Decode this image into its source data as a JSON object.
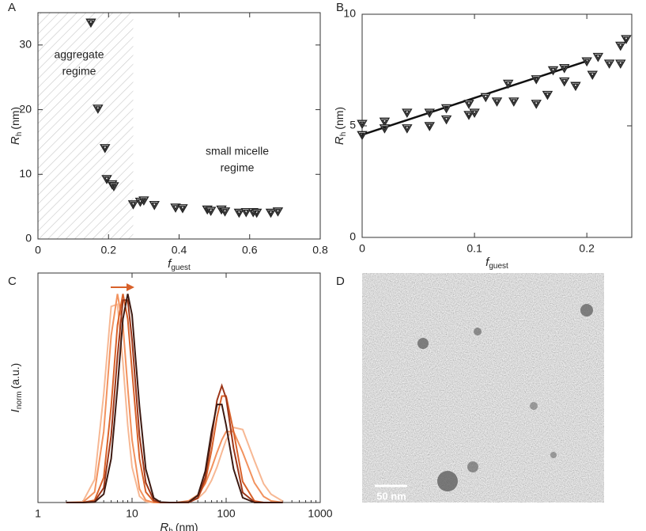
{
  "chart_data": [
    {
      "type": "scatter",
      "panel_label": "A",
      "xlabel": {
        "main": "f",
        "sub": "guest"
      },
      "ylabel": {
        "main": "R",
        "sub": "h",
        "unit": "(nm)"
      },
      "xlim": [
        0,
        0.8
      ],
      "xticks": [
        0,
        0.2,
        0.4,
        0.6,
        0.8
      ],
      "ylim": [
        0,
        35
      ],
      "yticks": [
        0,
        10,
        20,
        30
      ],
      "shaded_xrange": [
        0,
        0.27
      ],
      "annotations": [
        {
          "lines": [
            "aggregate",
            "regime"
          ]
        },
        {
          "lines": [
            "small micelle",
            "regime"
          ]
        }
      ],
      "series": [
        {
          "color": "#222222",
          "x": [
            0.15,
            0.17,
            0.19,
            0.195,
            0.21,
            0.215,
            0.27,
            0.29,
            0.3,
            0.33,
            0.39,
            0.41,
            0.48,
            0.49,
            0.52,
            0.53,
            0.57,
            0.59,
            0.61,
            0.62,
            0.66,
            0.68
          ],
          "y": [
            33.5,
            20.2,
            14.1,
            9.3,
            8.5,
            8.2,
            5.4,
            5.8,
            6.0,
            5.3,
            4.9,
            4.8,
            4.6,
            4.4,
            4.6,
            4.3,
            4.1,
            4.2,
            4.2,
            4.1,
            4.1,
            4.3
          ]
        }
      ]
    },
    {
      "type": "scatter",
      "panel_label": "B",
      "xlabel": {
        "main": "f",
        "sub": "guest"
      },
      "ylabel": {
        "main": "R",
        "sub": "h",
        "unit": "(nm)"
      },
      "xlim": [
        0,
        0.24
      ],
      "xticks": [
        0,
        0.1,
        0.2
      ],
      "ylim": [
        0,
        10
      ],
      "yticks": [
        0,
        5,
        10
      ],
      "fit": {
        "color": "#111111",
        "x": [
          0,
          0.2
        ],
        "y": [
          4.6,
          7.9
        ]
      },
      "series": [
        {
          "color": "#222222",
          "x": [
            0,
            0,
            0.02,
            0.02,
            0.04,
            0.04,
            0.06,
            0.06,
            0.075,
            0.075,
            0.095,
            0.095,
            0.1,
            0.11,
            0.12,
            0.13,
            0.135,
            0.155,
            0.155,
            0.165,
            0.17,
            0.18,
            0.18,
            0.19,
            0.2,
            0.205,
            0.21,
            0.22,
            0.23,
            0.23,
            0.235
          ],
          "y": [
            5.1,
            4.6,
            5.2,
            4.9,
            5.6,
            4.9,
            5.6,
            5.0,
            5.8,
            5.3,
            6.0,
            5.5,
            5.6,
            6.3,
            6.1,
            6.9,
            6.1,
            7.1,
            6.0,
            6.4,
            7.5,
            7.6,
            7.0,
            6.8,
            7.9,
            7.3,
            8.1,
            7.8,
            8.6,
            7.8,
            8.9
          ]
        }
      ]
    },
    {
      "type": "line",
      "panel_label": "C",
      "xlog": true,
      "xlabel": {
        "main": "R",
        "sub": "h",
        "unit": "(nm)"
      },
      "ylabel": {
        "main": "I",
        "sub": "norm",
        "unit": "(a.u.)"
      },
      "xlim": [
        1,
        1000
      ],
      "xticks": [
        1,
        10,
        100,
        1000
      ],
      "ylim": [
        0,
        1.1
      ],
      "x": [
        2,
        3,
        4,
        5,
        6,
        7,
        8,
        9,
        10,
        12,
        14,
        17,
        20,
        25,
        30,
        40,
        50,
        60,
        70,
        80,
        90,
        100,
        120,
        150,
        200,
        250,
        300,
        400
      ],
      "series": [
        {
          "color": "#f7b894",
          "values": [
            0,
            0.004,
            0.11,
            0.52,
            0.94,
            0.95,
            0.67,
            0.37,
            0.17,
            0.03,
            0.004,
            0,
            0,
            0,
            0,
            0.004,
            0.019,
            0.053,
            0.106,
            0.17,
            0.24,
            0.3,
            0.36,
            0.35,
            0.2,
            0.09,
            0.04,
            0.006
          ]
        },
        {
          "color": "#f2925e",
          "values": [
            0,
            0.001,
            0.05,
            0.34,
            0.8,
            1,
            0.85,
            0.55,
            0.3,
            0.065,
            0.011,
            0,
            0,
            0,
            0,
            0.008,
            0.036,
            0.09,
            0.165,
            0.24,
            0.3,
            0.34,
            0.34,
            0.24,
            0.094,
            0.029,
            0.008,
            0
          ]
        },
        {
          "color": "#d8612a",
          "values": [
            0,
            0,
            0.011,
            0.12,
            0.46,
            0.85,
            1,
            0.88,
            0.63,
            0.21,
            0.05,
            0.005,
            0,
            0,
            0,
            0.002,
            0.021,
            0.1,
            0.25,
            0.41,
            0.51,
            0.51,
            0.34,
            0.1,
            0.007,
            0,
            0,
            0
          ]
        },
        {
          "color": "#9c3619",
          "values": [
            0,
            0,
            0.005,
            0.07,
            0.32,
            0.7,
            0.97,
            0.97,
            0.78,
            0.32,
            0.095,
            0.011,
            0,
            0,
            0,
            0,
            0.022,
            0.12,
            0.31,
            0.49,
            0.56,
            0.5,
            0.26,
            0.048,
            0.002,
            0,
            0,
            0
          ]
        },
        {
          "color": "#3d1a12",
          "values": [
            0,
            0,
            0.002,
            0.04,
            0.21,
            0.55,
            0.88,
            1,
            0.9,
            0.46,
            0.16,
            0.022,
            0.002,
            0,
            0,
            0.002,
            0.034,
            0.15,
            0.34,
            0.47,
            0.47,
            0.37,
            0.16,
            0.023,
            0,
            0,
            0,
            0
          ]
        }
      ]
    }
  ],
  "image_panel": {
    "panel_label": "D",
    "scale_bar": "50 nm"
  }
}
